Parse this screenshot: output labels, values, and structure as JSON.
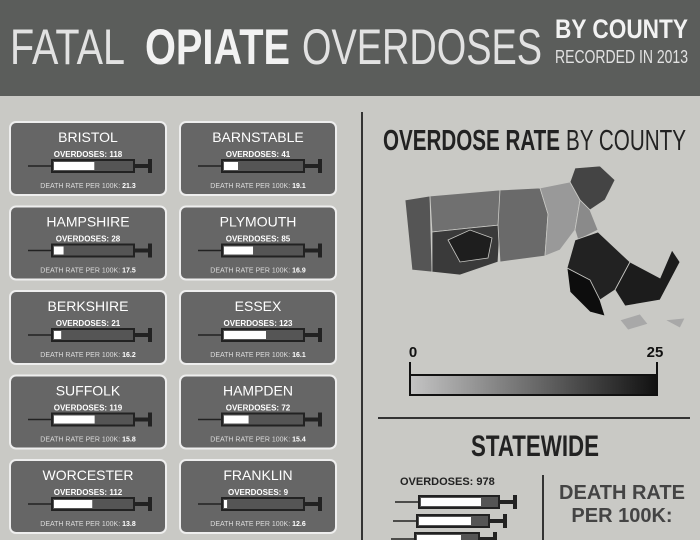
{
  "header": {
    "title_light": "FATAL",
    "title_bold": "OPIATE",
    "title_light2": "OVERDOSES",
    "subtitle_bold": "BY COUNTY",
    "subtitle": "RECORDED IN 2013"
  },
  "labels": {
    "overdoses": "OVERDOSES:",
    "death_rate": "DEATH RATE PER 100K:"
  },
  "cards": [
    {
      "name": "BRISTOL",
      "overdoses": 118,
      "death_rate": 21.3
    },
    {
      "name": "BARNSTABLE",
      "overdoses": 41,
      "death_rate": 19.1
    },
    {
      "name": "HAMPSHIRE",
      "overdoses": 28,
      "death_rate": 17.5
    },
    {
      "name": "PLYMOUTH",
      "overdoses": 85,
      "death_rate": 16.9
    },
    {
      "name": "BERKSHIRE",
      "overdoses": 21,
      "death_rate": 16.2
    },
    {
      "name": "ESSEX",
      "overdoses": 123,
      "death_rate": 16.1
    },
    {
      "name": "SUFFOLK",
      "overdoses": 119,
      "death_rate": 15.8
    },
    {
      "name": "HAMPDEN",
      "overdoses": 72,
      "death_rate": 15.4
    },
    {
      "name": "WORCESTER",
      "overdoses": 112,
      "death_rate": 13.8
    },
    {
      "name": "FRANKLIN",
      "overdoses": 9,
      "death_rate": 12.6
    }
  ],
  "map": {
    "title_bold": "OVERDOSE RATE",
    "title": "BY COUNTY",
    "scale": [
      0,
      25
    ]
  },
  "statewide": {
    "title": "STATEWIDE",
    "overdoses_label": "OVERDOSES:",
    "overdoses": 978,
    "death_rate_lines": [
      "DEATH RATE",
      "PER 100K:"
    ]
  }
}
